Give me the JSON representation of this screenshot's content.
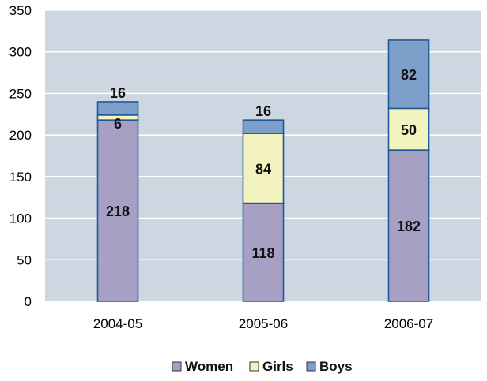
{
  "chart_data": {
    "type": "bar",
    "stacked": true,
    "categories": [
      "2004-05",
      "2005-06",
      "2006-07"
    ],
    "series": [
      {
        "name": "Women",
        "values": [
          218,
          118,
          182
        ],
        "color": "#a89fc5"
      },
      {
        "name": "Girls",
        "values": [
          6,
          84,
          50
        ],
        "color": "#f3f3bf"
      },
      {
        "name": "Boys",
        "values": [
          16,
          16,
          82
        ],
        "color": "#7f9fcb"
      }
    ],
    "data_labels": [
      [
        "218",
        "118",
        "182"
      ],
      [
        "6",
        "84",
        "50"
      ],
      [
        "16",
        "16",
        "82"
      ]
    ],
    "y_ticks": [
      "0",
      "50",
      "100",
      "150",
      "200",
      "250",
      "300",
      "350"
    ],
    "ylim": [
      0,
      350
    ],
    "grid": true,
    "legend_position": "bottom",
    "plot_background": "#cdd6e1",
    "bar_border_color": "#1f5a96"
  }
}
